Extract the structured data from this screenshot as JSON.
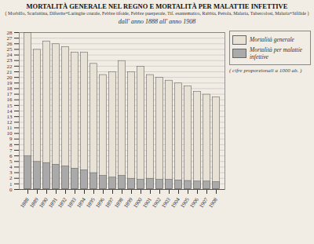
{
  "chart_data": {
    "type": "bar",
    "title": "MORTALITÀ GENERALE NEL REGNO E MORTALITÀ PER MALATTIE INFETTIVE",
    "subtitle": [
      "( Morbillo, Scarlattina, Difterite+Laringite crurale, Febbre tifoide, Febbre puerperale, Tif. esantematico, Rabbia, Pettola, Malaria, Tubercolosi, Malaria+Sifilide )",
      "dall' anno 1888 all' anno 1908"
    ],
    "annotations": [
      "( cifre proporzionali a 1000 ab. )"
    ],
    "categories": [
      "1888",
      "1889",
      "1890",
      "1891",
      "1892",
      "1893",
      "1894",
      "1895",
      "1896",
      "1897",
      "1898",
      "1899",
      "1900",
      "1901",
      "1902",
      "1903",
      "1904",
      "1905",
      "1906",
      "1907",
      "1908"
    ],
    "series": [
      {
        "name": "Mortalità generale",
        "color": "#e8e2d6",
        "values": [
          28.0,
          25.0,
          26.5,
          26.0,
          25.5,
          24.5,
          24.5,
          22.5,
          20.5,
          21.0,
          23.0,
          21.0,
          22.0,
          20.5,
          20.0,
          19.5,
          19.0,
          18.5,
          17.5,
          17.0,
          16.5
        ]
      },
      {
        "name": "Mortalità per malattie infettive",
        "color": "#aaaaaa",
        "values": [
          6.0,
          5.0,
          4.8,
          4.5,
          4.2,
          3.8,
          3.5,
          3.0,
          2.5,
          2.2,
          2.5,
          2.0,
          1.8,
          2.0,
          1.8,
          1.8,
          1.7,
          1.6,
          1.5,
          1.5,
          1.4
        ]
      }
    ],
    "stacked": false,
    "ylim": [
      0,
      28
    ],
    "yticks": [
      0,
      1,
      2,
      3,
      4,
      5,
      6,
      7,
      8,
      9,
      10,
      11,
      12,
      13,
      14,
      15,
      16,
      17,
      18,
      19,
      20,
      21,
      22,
      23,
      24,
      25,
      26,
      27,
      28
    ],
    "grid": true,
    "legend": "right"
  }
}
